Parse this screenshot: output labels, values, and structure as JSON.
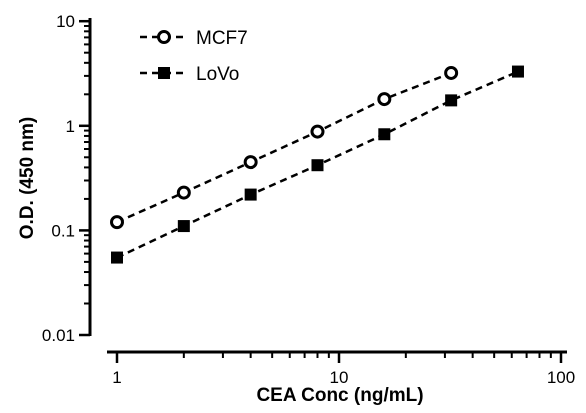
{
  "chart_data": {
    "type": "scatter",
    "title": "",
    "xlabel": "CEA Conc (ng/mL)",
    "ylabel": "O.D. (450 nm)",
    "xscale": "log",
    "yscale": "log",
    "xlim": [
      0.7,
      100
    ],
    "ylim": [
      0.01,
      10
    ],
    "xticks": [
      1,
      10,
      100
    ],
    "xtick_labels": [
      "1",
      "10",
      "100"
    ],
    "yticks": [
      0.01,
      0.1,
      1,
      10
    ],
    "ytick_labels": [
      "0.01",
      "0.1",
      "1",
      "10"
    ],
    "grid": false,
    "legend_position": "top-left",
    "series": [
      {
        "name": "MCF7",
        "marker": "open-circle",
        "line": "dashed",
        "color": "#000000",
        "x": [
          1,
          2,
          4,
          8,
          16,
          32
        ],
        "y": [
          0.12,
          0.23,
          0.45,
          0.88,
          1.8,
          3.2
        ]
      },
      {
        "name": "LoVo",
        "marker": "filled-square",
        "line": "dashed",
        "color": "#000000",
        "x": [
          1,
          2,
          4,
          8,
          16,
          32,
          64
        ],
        "y": [
          0.055,
          0.11,
          0.22,
          0.42,
          0.83,
          1.75,
          3.3
        ]
      }
    ]
  }
}
